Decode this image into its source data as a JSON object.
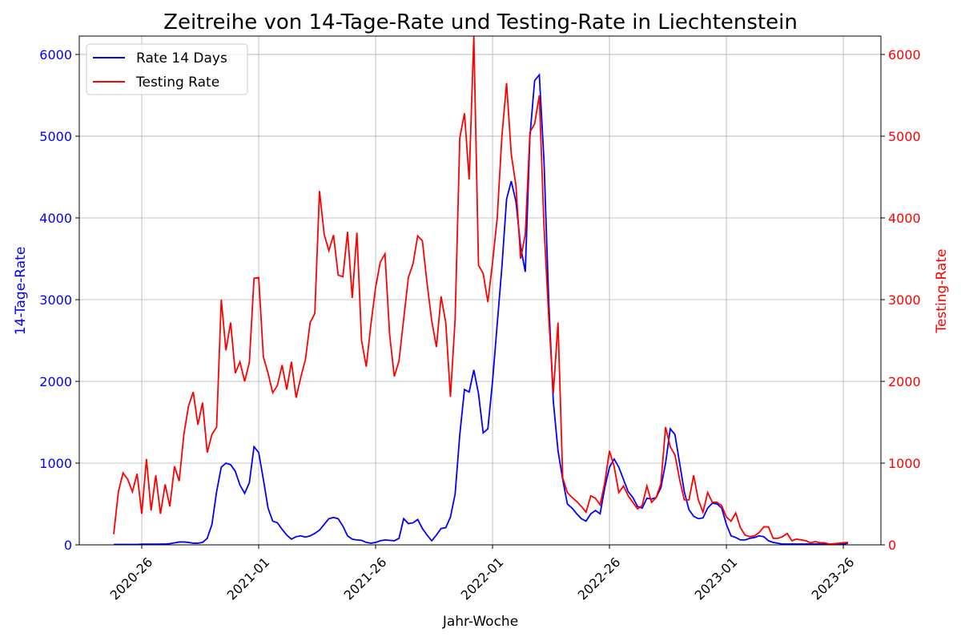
{
  "chart_data": {
    "type": "line",
    "title": "Zeitreihe von 14-Tage-Rate und Testing-Rate in Liechtenstein",
    "xlabel": "Jahr-Woche",
    "ylabel": "14-Tage-Rate",
    "y2label": "Testing-Rate",
    "categories": [
      null,
      null,
      null,
      null,
      null,
      null,
      "2020-26",
      null,
      null,
      null,
      null,
      null,
      null,
      null,
      null,
      null,
      null,
      null,
      null,
      null,
      null,
      null,
      null,
      null,
      null,
      null,
      null,
      null,
      null,
      null,
      null,
      "2021-01",
      null,
      null,
      null,
      null,
      null,
      null,
      null,
      null,
      null,
      null,
      null,
      null,
      null,
      null,
      null,
      null,
      null,
      null,
      null,
      null,
      null,
      null,
      null,
      null,
      "2021-26",
      null,
      null,
      null,
      null,
      null,
      null,
      null,
      null,
      null,
      null,
      null,
      null,
      null,
      null,
      null,
      null,
      null,
      null,
      null,
      null,
      null,
      null,
      null,
      null,
      "2022-01",
      null,
      null,
      null,
      null,
      null,
      null,
      null,
      null,
      null,
      null,
      null,
      null,
      null,
      null,
      null,
      null,
      null,
      null,
      null,
      null,
      null,
      null,
      null,
      null,
      "2022-26",
      null,
      null,
      null,
      null,
      null,
      null,
      null,
      null,
      null,
      null,
      null,
      null,
      null,
      null,
      null,
      null,
      null,
      null,
      null,
      null,
      null,
      null,
      null,
      null,
      "2023-01",
      null,
      null,
      null,
      null,
      null,
      null,
      null,
      null,
      null,
      null,
      null,
      null,
      null,
      null,
      null,
      null,
      null,
      null,
      null,
      null,
      null,
      null,
      null,
      null,
      "2023-26",
      null
    ],
    "series": [
      {
        "name": "Rate 14 Days",
        "color": "blue",
        "values": [
          5,
          5,
          5,
          5,
          5,
          5,
          8,
          8,
          8,
          8,
          10,
          10,
          15,
          25,
          35,
          35,
          30,
          20,
          20,
          30,
          80,
          250,
          650,
          950,
          1000,
          980,
          900,
          730,
          630,
          760,
          1200,
          1130,
          800,
          450,
          290,
          270,
          190,
          120,
          70,
          100,
          110,
          95,
          110,
          140,
          180,
          250,
          320,
          335,
          320,
          230,
          110,
          70,
          60,
          55,
          30,
          20,
          30,
          50,
          60,
          55,
          50,
          80,
          320,
          260,
          270,
          310,
          200,
          120,
          50,
          120,
          200,
          210,
          340,
          620,
          1350,
          1900,
          1870,
          2140,
          1850,
          1370,
          1420,
          2000,
          2700,
          3400,
          4230,
          4450,
          4200,
          3650,
          3340,
          5000,
          5680,
          5750,
          4700,
          3000,
          1750,
          1150,
          800,
          500,
          450,
          380,
          320,
          290,
          380,
          420,
          380,
          700,
          950,
          1050,
          950,
          800,
          650,
          580,
          470,
          450,
          570,
          560,
          580,
          700,
          1000,
          1420,
          1350,
          1000,
          650,
          430,
          350,
          320,
          330,
          450,
          510,
          500,
          450,
          250,
          110,
          90,
          60,
          60,
          80,
          90,
          110,
          100,
          50,
          30,
          20,
          10,
          10,
          10,
          10,
          10,
          10,
          10,
          10,
          10,
          10,
          10,
          10,
          10,
          10,
          20
        ]
      },
      {
        "name": "Testing Rate",
        "color": "red",
        "axis": "y2",
        "values": [
          130,
          650,
          880,
          800,
          650,
          870,
          380,
          1050,
          420,
          850,
          380,
          740,
          470,
          960,
          780,
          1350,
          1700,
          1870,
          1470,
          1740,
          1130,
          1350,
          1440,
          3000,
          2380,
          2720,
          2100,
          2240,
          2000,
          2230,
          3260,
          3270,
          2300,
          2100,
          1860,
          1950,
          2200,
          1900,
          2240,
          1800,
          2050,
          2270,
          2720,
          2830,
          4330,
          3800,
          3600,
          3790,
          3300,
          3280,
          3830,
          3020,
          3820,
          2500,
          2180,
          2700,
          3150,
          3460,
          3560,
          2570,
          2060,
          2250,
          2760,
          3270,
          3440,
          3780,
          3720,
          3200,
          2740,
          2420,
          3040,
          2720,
          1810,
          2760,
          4980,
          5280,
          4470,
          6220,
          3420,
          3320,
          2970,
          3450,
          4000,
          5000,
          5650,
          4780,
          4400,
          3500,
          3800,
          5050,
          5150,
          5500,
          3900,
          2800,
          1860,
          2720,
          820,
          640,
          580,
          530,
          470,
          400,
          600,
          570,
          490,
          760,
          1150,
          960,
          640,
          720,
          600,
          520,
          440,
          480,
          720,
          520,
          580,
          750,
          1440,
          1200,
          1100,
          800,
          550,
          550,
          850,
          550,
          400,
          640,
          520,
          520,
          480,
          340,
          290,
          390,
          210,
          120,
          100,
          110,
          150,
          220,
          220,
          80,
          80,
          100,
          140,
          50,
          70,
          60,
          50,
          25,
          40,
          25,
          25,
          10,
          15,
          20,
          25,
          30
        ]
      }
    ],
    "ylim": [
      0,
      6225
    ],
    "yticks": [
      0,
      1000,
      2000,
      3000,
      4000,
      5000,
      6000
    ],
    "y2lim": [
      0,
      6225
    ],
    "y2ticks": [
      0,
      1000,
      2000,
      3000,
      4000,
      5000,
      6000
    ],
    "grid": true,
    "legend": "upper left"
  }
}
